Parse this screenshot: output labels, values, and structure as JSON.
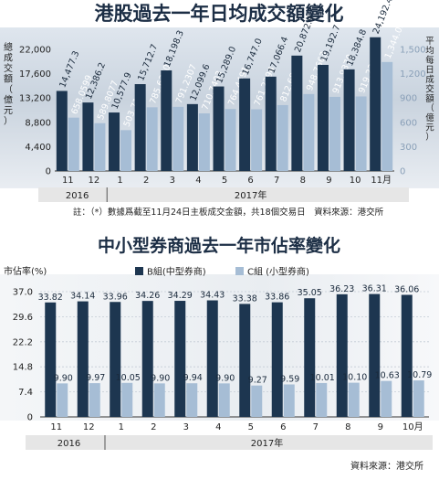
{
  "chart_data": [
    {
      "type": "bar",
      "title": "港股過去一年日均成交額變化",
      "ylabel_left": "總成交額（億元）",
      "ylabel_right": "平均每日成交額（億元）",
      "categories": [
        "11",
        "12",
        "1",
        "2",
        "3",
        "4",
        "5",
        "6",
        "7",
        "8",
        "9",
        "10",
        "11月"
      ],
      "group_labels": [
        {
          "label": "2016",
          "from": 0,
          "to": 1
        },
        {
          "label": "2017年",
          "from": 2,
          "to": 12
        }
      ],
      "left_ticks": [
        "0",
        "4,400",
        "8,800",
        "13,200",
        "17,600",
        "22,000"
      ],
      "right_ticks": [
        "0",
        "300",
        "600",
        "900",
        "1,200",
        "1,500"
      ],
      "ylim_left": [
        0,
        22000
      ],
      "ylim_right": [
        0,
        1500
      ],
      "series": [
        {
          "name": "總成交額",
          "axis": "left",
          "color": "#1d3650",
          "values": [
            14477.3,
            12386.2,
            10577.9,
            15712.7,
            18198.3,
            12099.6,
            15289.0,
            16747.0,
            17066.4,
            20872.9,
            19192.7,
            18384.8,
            24192.4
          ],
          "labels": [
            "14,477.3",
            "12,386.2",
            "10,577.9",
            "15,712.7",
            "18,198.3",
            "12,099.6",
            "15,289.0",
            "16,747.0",
            "17,066.4",
            "20,872.9",
            "19,192.7",
            "18,384.8",
            "24,192.4*"
          ]
        },
        {
          "name": "平均每日成交額",
          "axis": "right",
          "color": "#a6bdd5",
          "values": [
            658.0,
            589.8,
            503.7,
            785.6,
            791.2,
            710.7,
            764.4,
            761.2,
            812.7,
            948.8,
            913.9,
            919.2,
            1344.0
          ],
          "labels": [
            "658.0599",
            "589.8077",
            "503.7115",
            "785.6360",
            "791.2307",
            "710.7403",
            "764.4491",
            "761.2294",
            "812.6843",
            "948.7663",
            "913.9370",
            "919.2390",
            "1,344.02*"
          ]
        }
      ],
      "note": "註：（*）數據爲截至11月24日主板成交金額，共18個交易日　資料來源：港交所"
    },
    {
      "type": "bar",
      "title": "中小型券商過去一年市佔率變化",
      "ylabel": "市佔率(%)",
      "categories": [
        "11",
        "12",
        "1",
        "2",
        "3",
        "4",
        "5",
        "6",
        "7",
        "8",
        "9",
        "10月"
      ],
      "group_labels": [
        {
          "label": "2016",
          "from": 0,
          "to": 1
        },
        {
          "label": "2017年",
          "from": 2,
          "to": 11
        }
      ],
      "yticks": [
        "0",
        "7.4",
        "14.8",
        "22.2",
        "29.6",
        "37.0"
      ],
      "ylim": [
        0,
        37
      ],
      "legend": [
        {
          "name": "B組(中型券商)",
          "color": "#1d3650"
        },
        {
          "name": "C組 (小型券商)",
          "color": "#a6bdd5"
        }
      ],
      "series": [
        {
          "name": "B組(中型券商)",
          "color": "#1d3650",
          "values": [
            33.82,
            34.14,
            33.96,
            34.26,
            34.29,
            34.43,
            33.38,
            33.86,
            35.05,
            36.23,
            36.31,
            36.06
          ],
          "labels": [
            "33.82",
            "34.14",
            "33.96",
            "34.26",
            "34.29",
            "34.43",
            "33.38",
            "33.86",
            "35.05",
            "36.23",
            "36.31",
            "36.06"
          ]
        },
        {
          "name": "C組 (小型券商)",
          "color": "#a6bdd5",
          "values": [
            9.9,
            9.97,
            10.05,
            9.9,
            9.94,
            9.9,
            9.27,
            9.59,
            10.01,
            10.1,
            10.63,
            10.79
          ],
          "labels": [
            "9.90",
            "9.97",
            "10.05",
            "9.90",
            "9.94",
            "9.90",
            "9.27",
            "9.59",
            "10.01",
            "10.10",
            "10.63",
            "10.79"
          ]
        }
      ],
      "source": "資料來源：港交所"
    }
  ]
}
